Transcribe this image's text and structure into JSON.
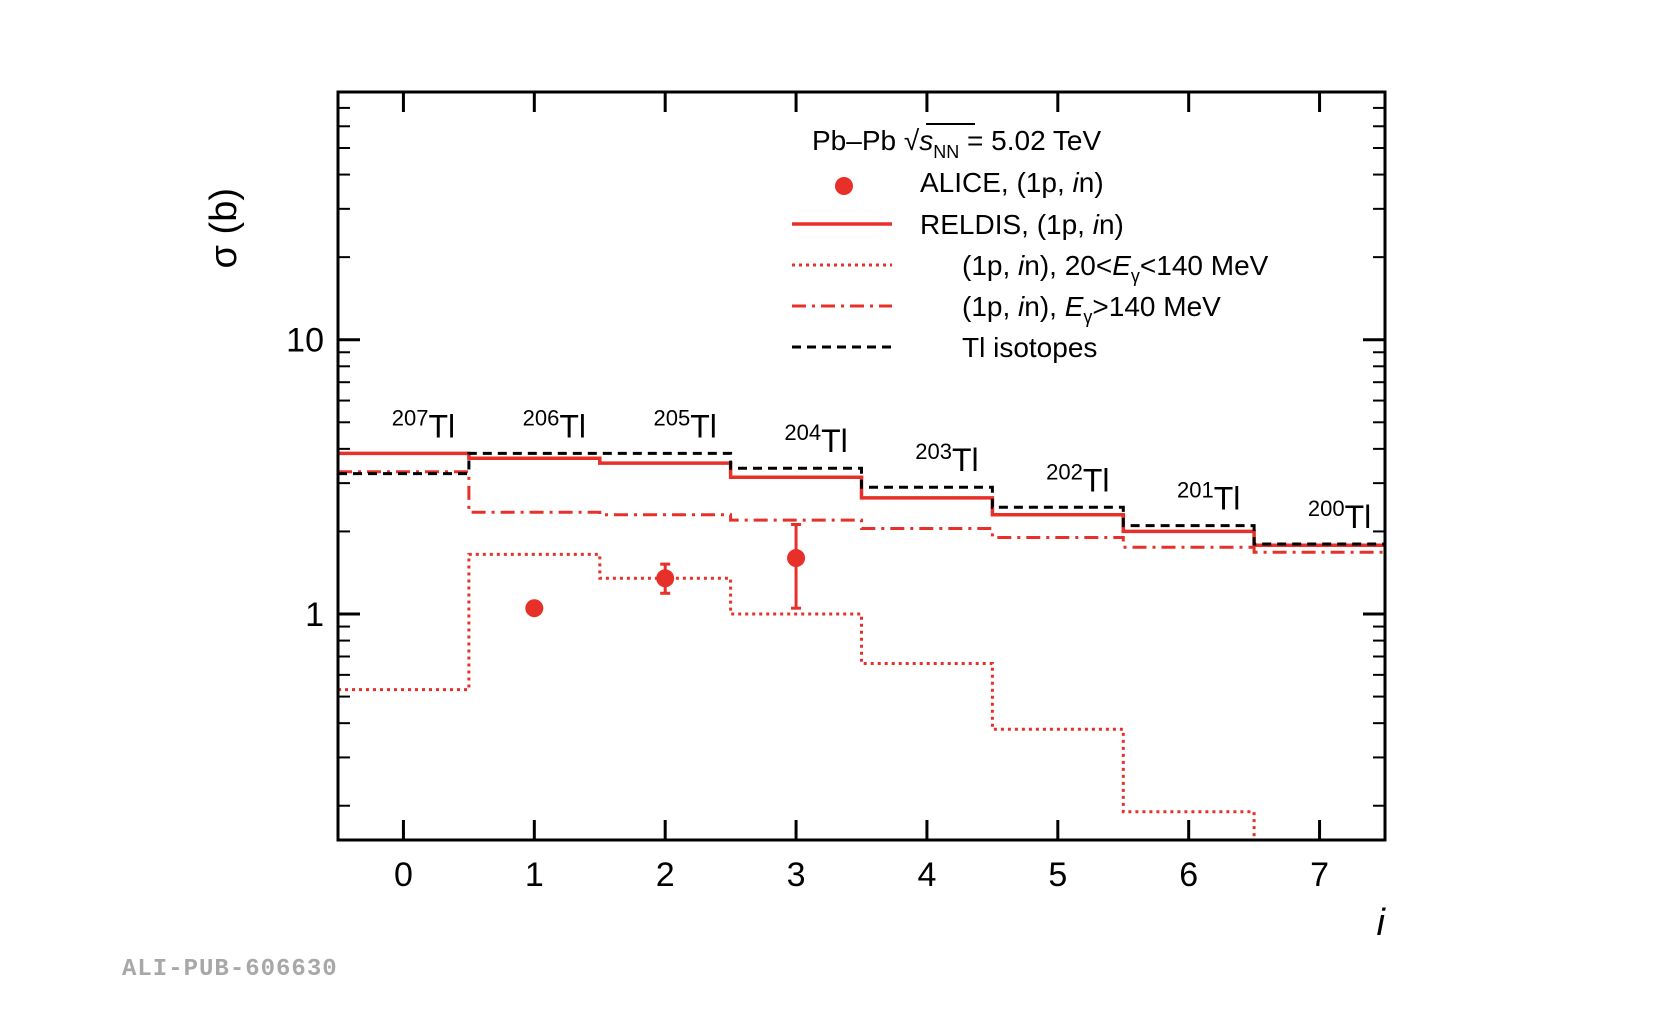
{
  "footer": {
    "id": "ALI-PUB-606630"
  },
  "chart_data": {
    "type": "line",
    "xlabel": "i",
    "ylabel": "σ (b)",
    "xlim": [
      -0.5,
      7.5
    ],
    "ylim": [
      0.15,
      80
    ],
    "yscale": "log",
    "x_ticks": [
      0,
      1,
      2,
      3,
      4,
      5,
      6,
      7
    ],
    "y_tick_labels": [
      {
        "value": 1,
        "label": "1"
      },
      {
        "value": 10,
        "label": "10"
      }
    ],
    "grid": false,
    "legend": {
      "placement": "top-right",
      "header_parts": {
        "pre": "Pb–Pb ",
        "s": "s",
        "nn": "NN",
        "post": " = 5.02 TeV"
      },
      "entries": [
        {
          "parts": [
            {
              "t": "ALICE,    (1p, "
            },
            {
              "t": "i",
              "i": true
            },
            {
              "t": "n)"
            }
          ]
        },
        {
          "parts": [
            {
              "t": "RELDIS, (1p, "
            },
            {
              "t": "i",
              "i": true
            },
            {
              "t": "n)"
            }
          ]
        },
        {
          "parts": [
            {
              "t": "(1p, "
            },
            {
              "t": "i",
              "i": true
            },
            {
              "t": "n), 20<"
            },
            {
              "t": "E",
              "i": true
            },
            {
              "t": "γ",
              "sub": true
            },
            {
              "t": "<140 MeV"
            }
          ]
        },
        {
          "parts": [
            {
              "t": "(1p, "
            },
            {
              "t": "i",
              "i": true
            },
            {
              "t": "n), "
            },
            {
              "t": "E",
              "i": true
            },
            {
              "t": "γ",
              "sub": true
            },
            {
              "t": ">140 MeV"
            }
          ]
        },
        {
          "parts": [
            {
              "t": "Tl isotopes"
            }
          ]
        }
      ]
    },
    "isotope_labels": [
      {
        "i": 0,
        "mass": "207",
        "element": "Tl"
      },
      {
        "i": 1,
        "mass": "206",
        "element": "Tl"
      },
      {
        "i": 2,
        "mass": "205",
        "element": "Tl"
      },
      {
        "i": 3,
        "mass": "204",
        "element": "Tl"
      },
      {
        "i": 4,
        "mass": "203",
        "element": "Tl"
      },
      {
        "i": 5,
        "mass": "202",
        "element": "Tl"
      },
      {
        "i": 6,
        "mass": "201",
        "element": "Tl"
      },
      {
        "i": 7,
        "mass": "200",
        "element": "Tl"
      }
    ],
    "series": [
      {
        "key": "alice",
        "style": "points",
        "color": "#e8302a",
        "points": [
          {
            "x": 1,
            "y": 1.05,
            "err_low": 0.02,
            "err_high": 0.02
          },
          {
            "x": 2,
            "y": 1.35,
            "err_low": 0.16,
            "err_high": 0.17
          },
          {
            "x": 3,
            "y": 1.6,
            "err_low": 0.55,
            "err_high": 0.52
          }
        ]
      },
      {
        "key": "reldis",
        "style": "solid",
        "color": "#e8302a",
        "values": [
          3.85,
          3.7,
          3.55,
          3.15,
          2.65,
          2.3,
          2.0,
          1.78
        ]
      },
      {
        "key": "low_energy",
        "style": "dotted",
        "color": "#e8302a",
        "values": [
          0.53,
          1.65,
          1.35,
          1.0,
          0.66,
          0.38,
          0.19,
          0.13
        ]
      },
      {
        "key": "high_energy",
        "style": "dashdot",
        "color": "#e8302a",
        "values": [
          3.3,
          2.35,
          2.3,
          2.2,
          2.05,
          1.9,
          1.75,
          1.68
        ]
      },
      {
        "key": "tl_isotopes",
        "style": "dashed",
        "color": "#000000",
        "values": [
          3.25,
          3.85,
          3.85,
          3.4,
          2.9,
          2.45,
          2.1,
          1.8
        ]
      }
    ]
  }
}
